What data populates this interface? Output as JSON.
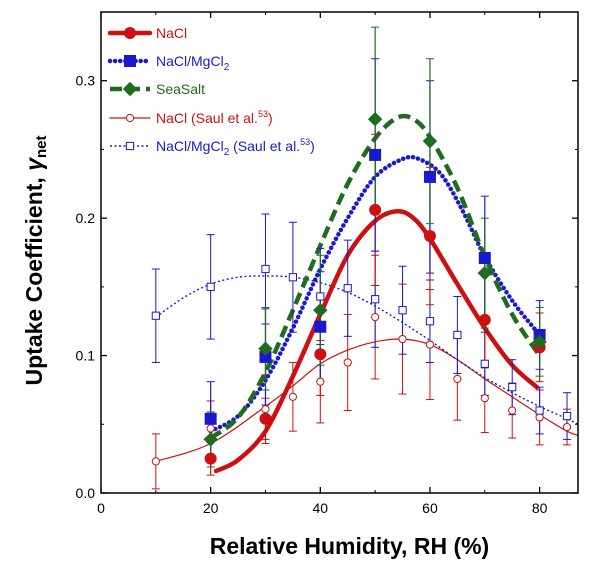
{
  "chart_data": {
    "type": "scatter",
    "xlabel": "Relative Humidity, RH (%)",
    "ylabel": "Uptake Coefficient, ",
    "ylabel_symbol": "γ",
    "ylabel_subscript": "net",
    "xlim": [
      0,
      87
    ],
    "ylim": [
      0,
      0.35
    ],
    "xticks": [
      "0",
      "20",
      "40",
      "60",
      "80"
    ],
    "yticks": [
      "0.0",
      "0.1",
      "0.2",
      "0.3"
    ],
    "grid": false,
    "legend_position": "top-left",
    "series": [
      {
        "name": "NaCl",
        "name_parts": [
          "NaCl"
        ],
        "color": "#cc1111",
        "marker": "circle-filled",
        "fit_style": "solid-thick",
        "points": [
          {
            "x": 20,
            "y": 0.025,
            "err": 0.012
          },
          {
            "x": 30,
            "y": 0.054,
            "err": 0.015
          },
          {
            "x": 40,
            "y": 0.101,
            "err": 0.03
          },
          {
            "x": 50,
            "y": 0.206,
            "err": 0.055
          },
          {
            "x": 60,
            "y": 0.187,
            "err": 0.05
          },
          {
            "x": 70,
            "y": 0.126,
            "err": 0.035
          },
          {
            "x": 80,
            "y": 0.106,
            "err": 0.025
          }
        ],
        "fit": [
          [
            21,
            0.016
          ],
          [
            25,
            0.024
          ],
          [
            30,
            0.045
          ],
          [
            35,
            0.085
          ],
          [
            40,
            0.13
          ],
          [
            45,
            0.173
          ],
          [
            50,
            0.198
          ],
          [
            54,
            0.205
          ],
          [
            57,
            0.2
          ],
          [
            60,
            0.185
          ],
          [
            65,
            0.152
          ],
          [
            70,
            0.12
          ],
          [
            75,
            0.093
          ],
          [
            79.5,
            0.077
          ]
        ]
      },
      {
        "name": "NaCl/MgCl2",
        "name_parts": [
          "NaCl/MgCl",
          "2",
          ""
        ],
        "color": "#1a1acc",
        "marker": "square-filled",
        "fit_style": "dotted-thick",
        "points": [
          {
            "x": 20,
            "y": 0.054,
            "err": 0.027
          },
          {
            "x": 30,
            "y": 0.099,
            "err": 0.035
          },
          {
            "x": 40,
            "y": 0.121,
            "err": 0.04
          },
          {
            "x": 50,
            "y": 0.246,
            "err": 0.07
          },
          {
            "x": 60,
            "y": 0.23,
            "err": 0.07
          },
          {
            "x": 70,
            "y": 0.171,
            "err": 0.045
          },
          {
            "x": 80,
            "y": 0.115,
            "err": 0.025
          }
        ],
        "fit": [
          [
            20,
            0.045
          ],
          [
            25,
            0.056
          ],
          [
            30,
            0.082
          ],
          [
            35,
            0.12
          ],
          [
            40,
            0.163
          ],
          [
            45,
            0.2
          ],
          [
            50,
            0.23
          ],
          [
            55,
            0.243
          ],
          [
            58,
            0.243
          ],
          [
            62,
            0.232
          ],
          [
            66,
            0.205
          ],
          [
            70,
            0.172
          ],
          [
            75,
            0.14
          ],
          [
            80,
            0.115
          ]
        ]
      },
      {
        "name": "SeaSalt",
        "name_parts": [
          "SeaSalt"
        ],
        "color": "#1f6b1f",
        "marker": "diamond-filled",
        "fit_style": "dashed-thick",
        "points": [
          {
            "x": 20,
            "y": 0.039,
            "err": 0.02
          },
          {
            "x": 30,
            "y": 0.105,
            "err": 0.03
          },
          {
            "x": 40,
            "y": 0.133,
            "err": 0.04
          },
          {
            "x": 50,
            "y": 0.272,
            "err": 0.067
          },
          {
            "x": 60,
            "y": 0.256,
            "err": 0.06
          },
          {
            "x": 70,
            "y": 0.16,
            "err": 0.04
          },
          {
            "x": 80,
            "y": 0.11,
            "err": 0.025
          }
        ],
        "fit": [
          [
            20,
            0.04
          ],
          [
            25,
            0.055
          ],
          [
            30,
            0.088
          ],
          [
            35,
            0.133
          ],
          [
            40,
            0.18
          ],
          [
            45,
            0.225
          ],
          [
            50,
            0.258
          ],
          [
            54,
            0.273
          ],
          [
            57,
            0.272
          ],
          [
            60,
            0.259
          ],
          [
            65,
            0.222
          ],
          [
            70,
            0.172
          ],
          [
            75,
            0.13
          ],
          [
            80,
            0.1
          ]
        ]
      },
      {
        "name": "NaCl (Saul et al.53)",
        "name_parts": [
          "NaCl (Saul et al.",
          "",
          "53",
          ")"
        ],
        "color": "#cc1111",
        "marker": "circle-open",
        "fit_style": "solid-thin",
        "points": [
          {
            "x": 10,
            "y": 0.023,
            "err": 0.02
          },
          {
            "x": 20,
            "y": 0.047,
            "err": 0.02
          },
          {
            "x": 30,
            "y": 0.061,
            "err": 0.025
          },
          {
            "x": 35,
            "y": 0.07,
            "err": 0.025
          },
          {
            "x": 40,
            "y": 0.081,
            "err": 0.03
          },
          {
            "x": 45,
            "y": 0.095,
            "err": 0.035
          },
          {
            "x": 50,
            "y": 0.128,
            "err": 0.045
          },
          {
            "x": 55,
            "y": 0.112,
            "err": 0.04
          },
          {
            "x": 60,
            "y": 0.108,
            "err": 0.04
          },
          {
            "x": 65,
            "y": 0.083,
            "err": 0.03
          },
          {
            "x": 70,
            "y": 0.069,
            "err": 0.025
          },
          {
            "x": 75,
            "y": 0.06,
            "err": 0.02
          },
          {
            "x": 80,
            "y": 0.055,
            "err": 0.02
          },
          {
            "x": 85,
            "y": 0.048,
            "err": 0.013
          }
        ],
        "fit": [
          [
            10,
            0.023
          ],
          [
            20,
            0.036
          ],
          [
            30,
            0.063
          ],
          [
            35,
            0.078
          ],
          [
            40,
            0.094
          ],
          [
            45,
            0.104
          ],
          [
            50,
            0.11
          ],
          [
            55,
            0.112
          ],
          [
            60,
            0.108
          ],
          [
            65,
            0.097
          ],
          [
            70,
            0.083
          ],
          [
            75,
            0.07
          ],
          [
            80,
            0.057
          ],
          [
            85,
            0.045
          ],
          [
            87,
            0.042
          ]
        ]
      },
      {
        "name": "NaCl/MgCl2 (Saul et al.53)",
        "name_parts": [
          "NaCl/MgCl",
          "2",
          " (Saul et al.",
          "53",
          ")"
        ],
        "color": "#1a1acc",
        "marker": "square-open",
        "fit_style": "dotted-thin",
        "points": [
          {
            "x": 10,
            "y": 0.129,
            "err": 0.034
          },
          {
            "x": 20,
            "y": 0.15,
            "err": 0.038
          },
          {
            "x": 30,
            "y": 0.163,
            "err": 0.04
          },
          {
            "x": 35,
            "y": 0.157,
            "err": 0.04
          },
          {
            "x": 40,
            "y": 0.143,
            "err": 0.035
          },
          {
            "x": 45,
            "y": 0.149,
            "err": 0.035
          },
          {
            "x": 50,
            "y": 0.141,
            "err": 0.035
          },
          {
            "x": 55,
            "y": 0.133,
            "err": 0.032
          },
          {
            "x": 60,
            "y": 0.125,
            "err": 0.03
          },
          {
            "x": 65,
            "y": 0.115,
            "err": 0.028
          },
          {
            "x": 70,
            "y": 0.094,
            "err": 0.023
          },
          {
            "x": 75,
            "y": 0.077,
            "err": 0.02
          },
          {
            "x": 80,
            "y": 0.06,
            "err": 0.017
          },
          {
            "x": 85,
            "y": 0.056,
            "err": 0.017
          }
        ],
        "fit": [
          [
            10,
            0.128
          ],
          [
            15,
            0.142
          ],
          [
            20,
            0.152
          ],
          [
            25,
            0.157
          ],
          [
            30,
            0.158
          ],
          [
            35,
            0.157
          ],
          [
            40,
            0.153
          ],
          [
            45,
            0.146
          ],
          [
            50,
            0.136
          ],
          [
            55,
            0.124
          ],
          [
            60,
            0.111
          ],
          [
            65,
            0.097
          ],
          [
            70,
            0.084
          ],
          [
            75,
            0.073
          ],
          [
            80,
            0.063
          ],
          [
            85,
            0.054
          ],
          [
            87,
            0.05
          ]
        ]
      }
    ]
  }
}
